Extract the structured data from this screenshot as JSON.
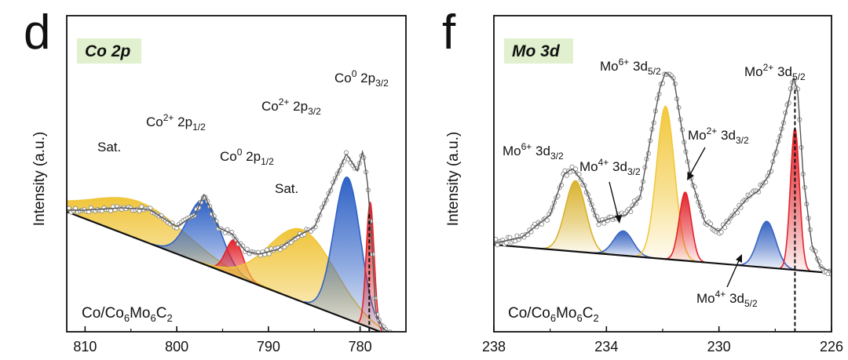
{
  "chart_data": [
    {
      "type": "line",
      "panel_label": "d",
      "title": "Co 2p",
      "ylabel": "Intensity (a.u.)",
      "xlabel": "",
      "x_reversed": true,
      "xlim": [
        812,
        775
      ],
      "x_ticks": [
        810,
        800,
        790,
        780
      ],
      "tick_labels": [
        "810",
        "800",
        "790",
        "780"
      ],
      "sample_label": {
        "base": "Co/Co",
        "sub1": "6",
        "mid": "Mo",
        "sub2": "6",
        "end": "C",
        "sub3": "2"
      },
      "baseline": {
        "x": [
          812,
          776
        ],
        "y": [
          60,
          -101
        ]
      },
      "envelope": {
        "x": [
          812,
          810,
          806,
          803,
          800,
          798,
          797,
          795.5,
          794,
          792.5,
          791,
          789,
          787,
          785,
          783,
          781.5,
          780.3,
          779.7,
          779.2,
          778.7,
          778.3,
          777.5,
          776.5,
          776
        ],
        "y": [
          62,
          62,
          65,
          63,
          41,
          56,
          83,
          40,
          32,
          10,
          6,
          12,
          28,
          40,
          94,
          134,
          112,
          138,
          98,
          20,
          -70,
          -88,
          -98,
          -102
        ]
      },
      "peak_line_x": 779,
      "peaks": [
        {
          "name": "sat1",
          "color": "#f0c53a",
          "fit": "gaussian",
          "center": 804,
          "height": 48,
          "fwhm": 12.0
        },
        {
          "name": "co2p12",
          "color": "#2f62c6",
          "fit": "gaussian",
          "center": 797,
          "height": 82,
          "fwhm": 4.2
        },
        {
          "name": "co0p12",
          "color": "#e3242b",
          "fit": "gaussian",
          "center": 793.7,
          "height": 46,
          "fwhm": 2.2
        },
        {
          "name": "sat2",
          "color": "#f0c53a",
          "fit": "gaussian",
          "center": 786.3,
          "height": 92,
          "fwhm": 8.5
        },
        {
          "name": "co2p32",
          "color": "#2f62c6",
          "fit": "gaussian",
          "center": 781.4,
          "height": 181,
          "fwhm": 3.4
        },
        {
          "name": "co0p32",
          "color": "#e3242b",
          "fit": "gaussian",
          "center": 778.9,
          "height": 160,
          "fwhm": 1.0
        }
      ],
      "peak_labels": [
        {
          "base": "Sat.",
          "sup": "",
          "orb": "",
          "sub": ""
        },
        {
          "base": "Co",
          "sup": "2+",
          "orb": " 2p",
          "sub": "1/2"
        },
        {
          "base": "Co",
          "sup": "0",
          "orb": " 2p",
          "sub": "1/2"
        },
        {
          "base": "Sat.",
          "sup": "",
          "orb": "",
          "sub": ""
        },
        {
          "base": "Co",
          "sup": "2+",
          "orb": " 2p",
          "sub": "3/2"
        },
        {
          "base": "Co",
          "sup": "0",
          "orb": " 2p",
          "sub": "3/2"
        }
      ]
    },
    {
      "type": "line",
      "panel_label": "f",
      "title": "Mo 3d",
      "ylabel": "Intensity (a.u.)",
      "xlabel": "",
      "x_reversed": true,
      "xlim": [
        238,
        226
      ],
      "x_ticks": [
        238,
        234,
        230,
        226
      ],
      "tick_labels": [
        "238",
        "234",
        "230",
        "226"
      ],
      "sample_label": {
        "base": "Co/Co",
        "sub1": "6",
        "mid": "Mo",
        "sub2": "6",
        "end": "C",
        "sub3": "2"
      },
      "baseline": {
        "x": [
          238,
          226
        ],
        "y": [
          0,
          -38
        ]
      },
      "envelope": {
        "x": [
          238,
          237,
          236,
          235.5,
          235.2,
          234.8,
          234.3,
          233.8,
          233.3,
          232.8,
          232.4,
          232.1,
          231.9,
          231.6,
          231.3,
          231.0,
          230.5,
          230.0,
          229.5,
          229.0,
          228.6,
          228.2,
          227.8,
          227.5,
          227.35,
          227.2,
          227.0,
          226.7,
          226.4,
          226
        ],
        "y": [
          2,
          10,
          40,
          95,
          102,
          82,
          30,
          36,
          40,
          64,
          150,
          210,
          232,
          222,
          150,
          90,
          30,
          18,
          40,
          62,
          72,
          95,
          150,
          196,
          225,
          205,
          90,
          0,
          -30,
          -36
        ]
      },
      "peak_line_x": 227.3,
      "peaks": [
        {
          "name": "mo6_32",
          "color": "#d9b22e",
          "fit": "gaussian",
          "center": 235.1,
          "height": 95,
          "fwhm": 0.85
        },
        {
          "name": "mo4_32",
          "color": "#3865c2",
          "fit": "gaussian",
          "center": 233.4,
          "height": 33,
          "fwhm": 0.8
        },
        {
          "name": "mo6_52",
          "color": "#f2c83c",
          "fit": "gaussian",
          "center": 231.9,
          "height": 205,
          "fwhm": 0.75
        },
        {
          "name": "mo2_32",
          "color": "#e3242b",
          "fit": "gaussian",
          "center": 231.2,
          "height": 92,
          "fwhm": 0.5
        },
        {
          "name": "mo4_52",
          "color": "#3865c2",
          "fit": "gaussian",
          "center": 228.3,
          "height": 62,
          "fwhm": 0.75
        },
        {
          "name": "mo2_52",
          "color": "#e3242b",
          "fit": "gaussian",
          "center": 227.3,
          "height": 190,
          "fwhm": 0.38
        }
      ],
      "peak_labels": [
        {
          "base": "Mo",
          "sup": "6+",
          "orb": " 3d",
          "sub": "3/2"
        },
        {
          "base": "Mo",
          "sup": "4+",
          "orb": " 3d",
          "sub": "3/2"
        },
        {
          "base": "Mo",
          "sup": "6+",
          "orb": " 3d",
          "sub": "5/2"
        },
        {
          "base": "Mo",
          "sup": "2+",
          "orb": " 3d",
          "sub": "3/2"
        },
        {
          "base": "Mo",
          "sup": "4+",
          "orb": " 3d",
          "sub": "5/2"
        },
        {
          "base": "Mo",
          "sup": "2+",
          "orb": " 3d",
          "sub": "5/2"
        }
      ]
    }
  ]
}
